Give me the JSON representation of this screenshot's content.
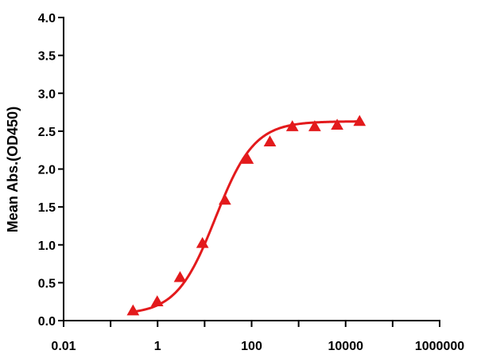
{
  "chart_data": {
    "type": "scatter",
    "title": "",
    "xlabel": "",
    "ylabel": "Mean Abs.(OD450)",
    "xscale": "log",
    "xlim": [
      0.01,
      1000000
    ],
    "ylim": [
      0,
      4.0
    ],
    "x_ticks": [
      {
        "value": 0.01,
        "label": "0.01"
      },
      {
        "value": 1,
        "label": "1"
      },
      {
        "value": 100,
        "label": "100"
      },
      {
        "value": 10000,
        "label": "10000"
      },
      {
        "value": 1000000,
        "label": "1000000"
      }
    ],
    "y_ticks": [
      {
        "value": 0.0,
        "label": "0.0"
      },
      {
        "value": 0.5,
        "label": "0.5"
      },
      {
        "value": 1.0,
        "label": "1.0"
      },
      {
        "value": 1.5,
        "label": "1.5"
      },
      {
        "value": 2.0,
        "label": "2.0"
      },
      {
        "value": 2.5,
        "label": "2.5"
      },
      {
        "value": 3.0,
        "label": "3.0"
      },
      {
        "value": 3.5,
        "label": "3.5"
      },
      {
        "value": 4.0,
        "label": "4.0"
      }
    ],
    "grid": false,
    "series": [
      {
        "marker": "triangle",
        "color": "#e31a1c",
        "points": [
          {
            "x": 0.3,
            "y": 0.13
          },
          {
            "x": 0.98,
            "y": 0.25
          },
          {
            "x": 3.0,
            "y": 0.57
          },
          {
            "x": 9.0,
            "y": 1.02
          },
          {
            "x": 27,
            "y": 1.59
          },
          {
            "x": 82,
            "y": 2.13
          },
          {
            "x": 245,
            "y": 2.36
          },
          {
            "x": 735,
            "y": 2.56
          },
          {
            "x": 2200,
            "y": 2.56
          },
          {
            "x": 6600,
            "y": 2.58
          },
          {
            "x": 19800,
            "y": 2.63
          }
        ]
      }
    ],
    "fit_curve": {
      "model": "4PL",
      "color": "#e31a1c",
      "bottom": 0.08,
      "top": 2.63,
      "ec50": 17,
      "hill": 1.05
    }
  }
}
